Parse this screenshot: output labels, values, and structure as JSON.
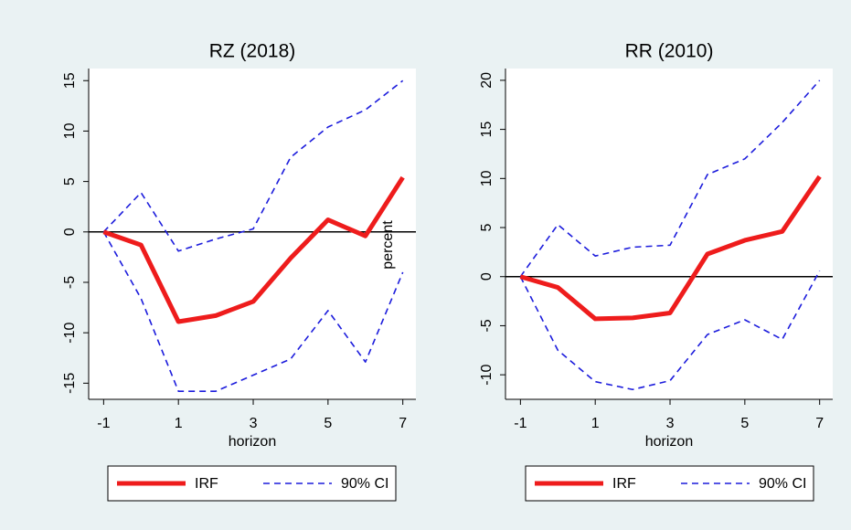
{
  "chart_data": [
    {
      "type": "line",
      "title": "RZ (2018)",
      "xlabel": "horizon",
      "ylabel": "percent",
      "x": [
        -1,
        0,
        1,
        2,
        3,
        4,
        5,
        6,
        7
      ],
      "series": [
        {
          "name": "IRF",
          "color": "#ee1c1c",
          "values": [
            0,
            -1.3,
            -8.9,
            -8.3,
            -6.9,
            -2.6,
            1.2,
            -0.4,
            5.4
          ]
        },
        {
          "name": "90% CI",
          "color": "#1c1cdc",
          "values": [
            0,
            3.9,
            -1.9,
            -0.7,
            0.3,
            7.4,
            10.4,
            12.1,
            15
          ],
          "lower": [
            0,
            -6.6,
            -15.8,
            -15.8,
            -14.2,
            -12.6,
            -7.8,
            -12.9,
            -4
          ]
        }
      ],
      "xlim": [
        -1.4,
        7.35
      ],
      "xticks": [
        -1,
        1,
        3,
        5,
        7
      ],
      "ylim": [
        -16.6,
        16.2
      ],
      "yticks": [
        -15,
        -10,
        -5,
        0,
        5,
        10,
        15
      ],
      "zero_line": true
    },
    {
      "type": "line",
      "title": "RR (2010)",
      "xlabel": "horizon",
      "x": [
        -1,
        0,
        1,
        2,
        3,
        4,
        5,
        6,
        7
      ],
      "series": [
        {
          "name": "IRF",
          "color": "#ee1c1c",
          "values": [
            0,
            -1.1,
            -4.3,
            -4.2,
            -3.7,
            2.3,
            3.7,
            4.6,
            10.2
          ]
        },
        {
          "name": "90% CI",
          "color": "#1c1cdc",
          "values": [
            0,
            5.3,
            2.1,
            3.0,
            3.2,
            10.4,
            12.0,
            15.7,
            20
          ],
          "lower": [
            0,
            -7.5,
            -10.7,
            -11.5,
            -10.6,
            -5.9,
            -4.4,
            -6.4,
            0.6
          ]
        }
      ],
      "xlim": [
        -1.4,
        7.35
      ],
      "xticks": [
        -1,
        1,
        3,
        5,
        7
      ],
      "ylim": [
        -12.5,
        21.2
      ],
      "yticks": [
        -10,
        -5,
        0,
        5,
        10,
        15,
        20
      ],
      "zero_line": true
    }
  ]
}
